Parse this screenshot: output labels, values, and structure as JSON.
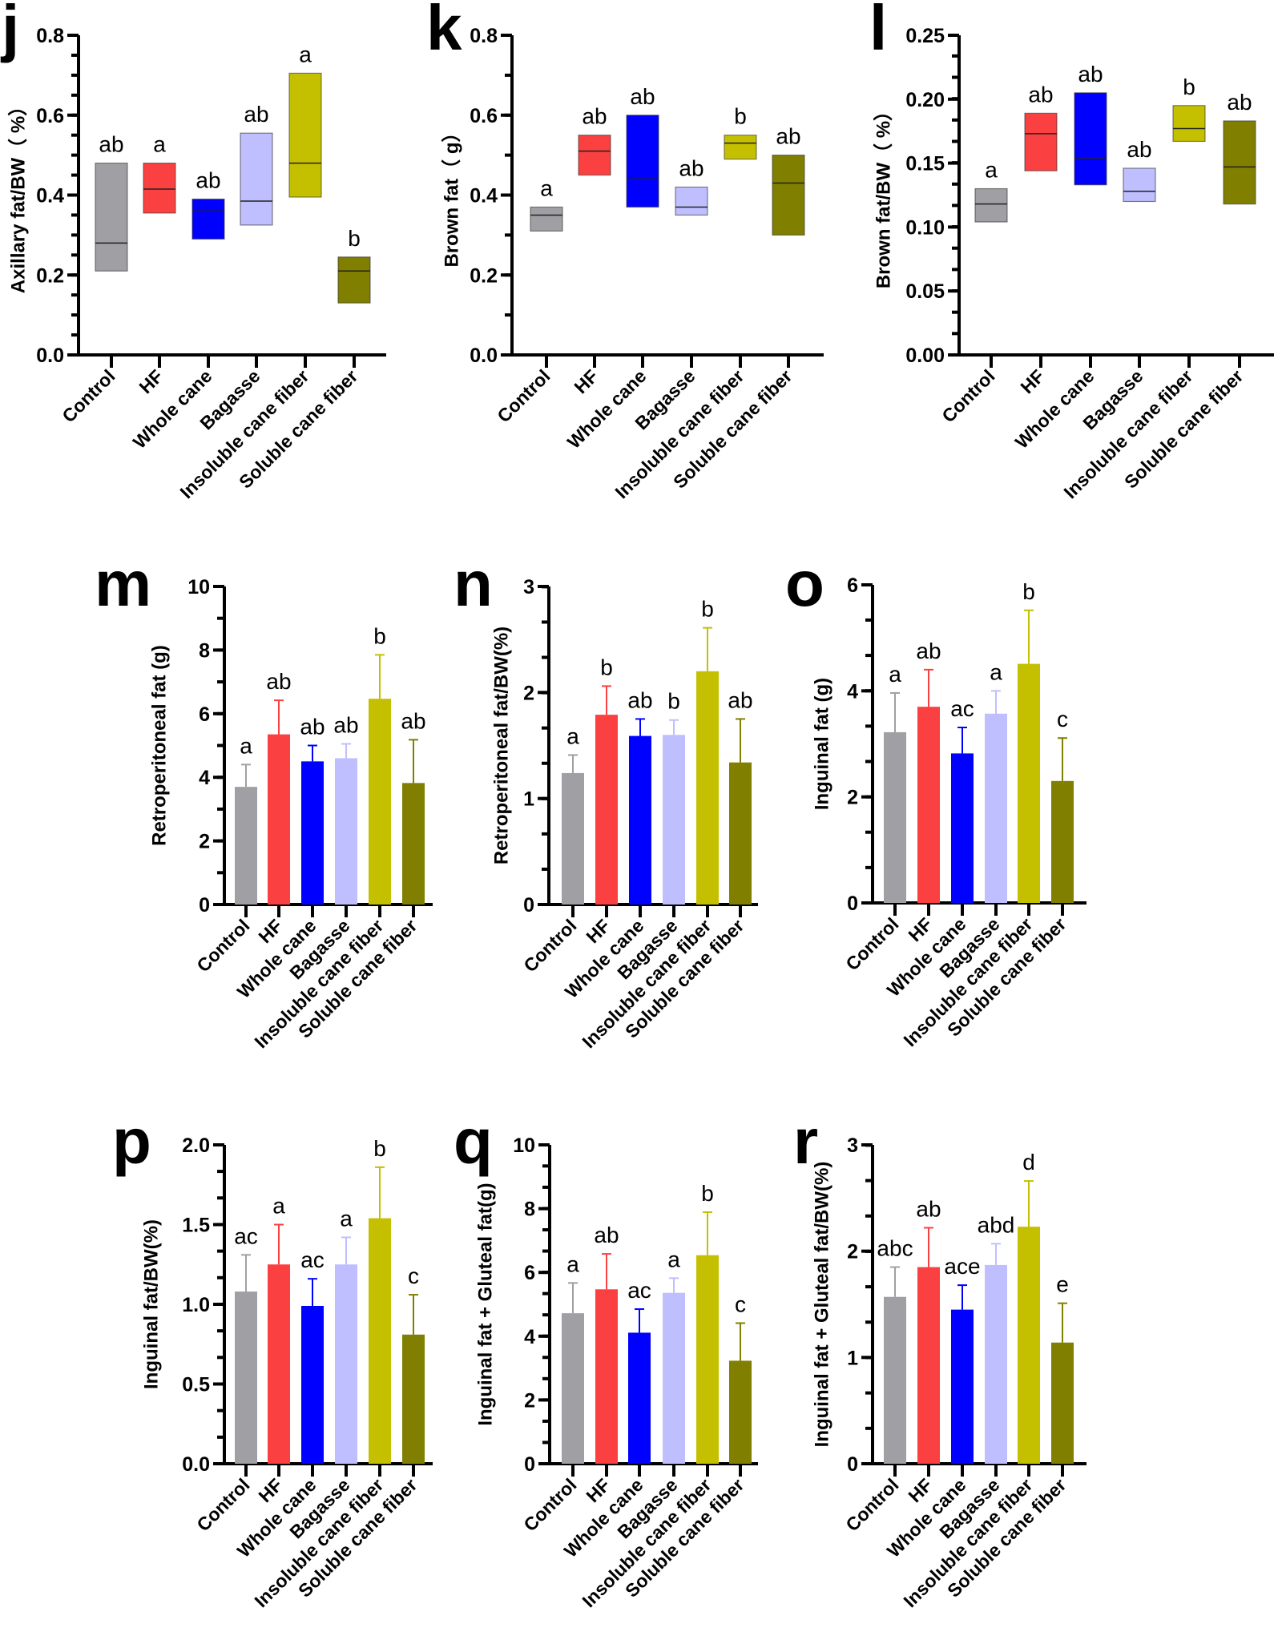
{
  "categories": [
    "Control",
    "HF",
    "Whole cane",
    "Bagasse",
    "Insoluble cane fiber",
    "Soluble cane fiber"
  ],
  "colors": [
    "#a0a0a4",
    "#fa4040",
    "#0000ff",
    "#bfbfff",
    "#c4c000",
    "#807f00"
  ],
  "chart_data": [
    {
      "panel": "j",
      "type": "floating-bar",
      "title": "",
      "ylabel": "Axillary fat/BW（ %）",
      "xlabel": "",
      "ylim": [
        0,
        0.8
      ],
      "yticks": [
        "0.0",
        "0.2",
        "0.4",
        "0.6",
        "0.8"
      ],
      "ytick_values": [
        0,
        0.2,
        0.4,
        0.6,
        0.8
      ],
      "minor_step": 0.05,
      "categories": [
        "Control",
        "HF",
        "Whole cane",
        "Bagasse",
        "Insoluble cane fiber",
        "Soluble cane fiber"
      ],
      "min": [
        0.21,
        0.355,
        0.29,
        0.325,
        0.395,
        0.13
      ],
      "max": [
        0.48,
        0.48,
        0.39,
        0.555,
        0.705,
        0.245
      ],
      "median": [
        0.28,
        0.415,
        0.36,
        0.385,
        0.48,
        0.21
      ],
      "significance": [
        "ab",
        "a",
        "ab",
        "ab",
        "a",
        "b"
      ]
    },
    {
      "panel": "k",
      "type": "floating-bar",
      "title": "",
      "ylabel": "Brown fat（ g）",
      "xlabel": "",
      "ylim": [
        0,
        0.8
      ],
      "yticks": [
        "0.0",
        "0.2",
        "0.4",
        "0.6",
        "0.8"
      ],
      "ytick_values": [
        0,
        0.2,
        0.4,
        0.6,
        0.8
      ],
      "minor_step": 0.1,
      "categories": [
        "Control",
        "HF",
        "Whole cane",
        "Bagasse",
        "Insoluble cane fiber",
        "Soluble cane fiber"
      ],
      "min": [
        0.31,
        0.45,
        0.37,
        0.35,
        0.49,
        0.3
      ],
      "max": [
        0.37,
        0.55,
        0.6,
        0.42,
        0.55,
        0.5
      ],
      "median": [
        0.35,
        0.51,
        0.44,
        0.37,
        0.53,
        0.43
      ],
      "significance": [
        "a",
        "ab",
        "ab",
        "ab",
        "b",
        "ab"
      ]
    },
    {
      "panel": "l",
      "type": "floating-bar",
      "title": "",
      "ylabel": "Brown fat/BW（ %）",
      "xlabel": "",
      "ylim": [
        0,
        0.25
      ],
      "yticks": [
        "0.00",
        "0.05",
        "0.10",
        "0.15",
        "0.20",
        "0.25"
      ],
      "ytick_values": [
        0,
        0.05,
        0.1,
        0.15,
        0.2,
        0.25
      ],
      "minor_step": 0.0167,
      "categories": [
        "Control",
        "HF",
        "Whole cane",
        "Bagasse",
        "Insoluble cane fiber",
        "Soluble cane fiber"
      ],
      "min": [
        0.104,
        0.144,
        0.133,
        0.12,
        0.167,
        0.118
      ],
      "max": [
        0.13,
        0.189,
        0.205,
        0.146,
        0.195,
        0.183
      ],
      "median": [
        0.118,
        0.173,
        0.154,
        0.128,
        0.177,
        0.147
      ],
      "significance": [
        "a",
        "ab",
        "ab",
        "ab",
        "b",
        "ab"
      ]
    },
    {
      "panel": "m",
      "type": "bar",
      "title": "",
      "ylabel": "Retroperitoneal fat (g)",
      "xlabel": "",
      "ylim": [
        0,
        10
      ],
      "yticks": [
        "0",
        "2",
        "4",
        "6",
        "8",
        "10"
      ],
      "ytick_values": [
        0,
        2,
        4,
        6,
        8,
        10
      ],
      "minor_step": 1,
      "categories": [
        "Control",
        "HF",
        "Whole cane",
        "Bagasse",
        "Insoluble cane fiber",
        "Soluble cane fiber"
      ],
      "values": [
        3.7,
        5.35,
        4.5,
        4.6,
        6.47,
        3.82
      ],
      "error_upper": [
        4.4,
        6.42,
        5.0,
        5.05,
        7.85,
        5.18
      ],
      "significance": [
        "a",
        "ab",
        "ab",
        "ab",
        "b",
        "ab"
      ]
    },
    {
      "panel": "n",
      "type": "bar",
      "title": "",
      "ylabel": "Retroperitoneal fat/BW(%)",
      "xlabel": "",
      "ylim": [
        0,
        3
      ],
      "yticks": [
        "0",
        "1",
        "2",
        "3"
      ],
      "ytick_values": [
        0,
        1,
        2,
        3
      ],
      "minor_step": 0.333,
      "categories": [
        "Control",
        "HF",
        "Whole cane",
        "Bagasse",
        "Insoluble cane fiber",
        "Soluble cane fiber"
      ],
      "values": [
        1.24,
        1.79,
        1.59,
        1.6,
        2.2,
        1.34
      ],
      "error_upper": [
        1.41,
        2.06,
        1.75,
        1.74,
        2.61,
        1.75
      ],
      "significance": [
        "a",
        "b",
        "ab",
        "b",
        "b",
        "ab"
      ]
    },
    {
      "panel": "o",
      "type": "bar",
      "title": "",
      "ylabel": "Inguinal fat (g)",
      "xlabel": "",
      "ylim": [
        0,
        6
      ],
      "yticks": [
        "0",
        "2",
        "4",
        "6"
      ],
      "ytick_values": [
        0,
        2,
        4,
        6
      ],
      "minor_step": 0.667,
      "categories": [
        "Control",
        "HF",
        "Whole cane",
        "Bagasse",
        "Insoluble cane fiber",
        "Soluble cane fiber"
      ],
      "values": [
        3.22,
        3.7,
        2.82,
        3.57,
        4.51,
        2.3
      ],
      "error_upper": [
        3.96,
        4.4,
        3.31,
        4.0,
        5.52,
        3.11
      ],
      "significance": [
        "a",
        "ab",
        "ac",
        "a",
        "b",
        "c"
      ]
    },
    {
      "panel": "p",
      "type": "bar",
      "title": "",
      "ylabel": "Inguinal fat/BW(%)",
      "xlabel": "",
      "ylim": [
        0,
        2.0
      ],
      "yticks": [
        "0.0",
        "0.5",
        "1.0",
        "1.5",
        "2.0"
      ],
      "ytick_values": [
        0,
        0.5,
        1.0,
        1.5,
        2.0
      ],
      "minor_step": 0.1667,
      "categories": [
        "Control",
        "HF",
        "Whole cane",
        "Bagasse",
        "Insoluble cane fiber",
        "Soluble cane fiber"
      ],
      "values": [
        1.08,
        1.25,
        0.99,
        1.25,
        1.54,
        0.81
      ],
      "error_upper": [
        1.31,
        1.5,
        1.16,
        1.42,
        1.86,
        1.06
      ],
      "significance": [
        "ac",
        "a",
        "ac",
        "a",
        "b",
        "c"
      ]
    },
    {
      "panel": "q",
      "type": "bar",
      "title": "",
      "ylabel": "Inguinal fat + Gluteal fat(g)",
      "xlabel": "",
      "ylim": [
        0,
        10
      ],
      "yticks": [
        "0",
        "2",
        "4",
        "6",
        "8",
        "10"
      ],
      "ytick_values": [
        0,
        2,
        4,
        6,
        8,
        10
      ],
      "minor_step": 0.667,
      "categories": [
        "Control",
        "HF",
        "Whole cane",
        "Bagasse",
        "Insoluble cane fiber",
        "Soluble cane fiber"
      ],
      "values": [
        4.72,
        5.47,
        4.11,
        5.36,
        6.54,
        3.23
      ],
      "error_upper": [
        5.67,
        6.58,
        4.85,
        5.82,
        7.89,
        4.41
      ],
      "significance": [
        "a",
        "ab",
        "ac",
        "a",
        "b",
        "c"
      ]
    },
    {
      "panel": "r",
      "type": "bar",
      "title": "",
      "ylabel": "Inguinal fat + Gluteal fat/BW(%)",
      "xlabel": "",
      "ylim": [
        0,
        3
      ],
      "yticks": [
        "0",
        "1",
        "2",
        "3"
      ],
      "ytick_values": [
        0,
        1,
        2,
        3
      ],
      "minor_step": 0.333,
      "categories": [
        "Control",
        "HF",
        "Whole cane",
        "Bagasse",
        "Insoluble cane fiber",
        "Soluble cane fiber"
      ],
      "values": [
        1.57,
        1.85,
        1.45,
        1.87,
        2.23,
        1.14
      ],
      "error_upper": [
        1.85,
        2.22,
        1.68,
        2.07,
        2.66,
        1.51
      ],
      "significance": [
        "abc",
        "ab",
        "ace",
        "abd",
        "d",
        "e"
      ]
    }
  ]
}
